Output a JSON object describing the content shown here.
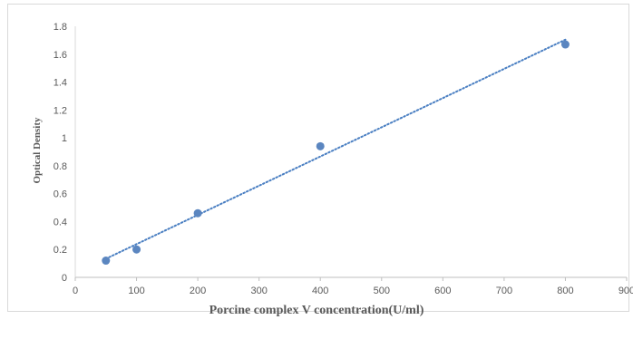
{
  "chart_data": {
    "type": "scatter",
    "title": "",
    "xlabel": "Porcine  complex V concentration(U/ml)",
    "ylabel": "Optical Density",
    "xlim": [
      0,
      900
    ],
    "ylim": [
      0,
      1.8
    ],
    "x_ticks": [
      0,
      100,
      200,
      300,
      400,
      500,
      600,
      700,
      800,
      900
    ],
    "x_tick_labels": [
      "0",
      "100",
      "200",
      "300",
      "400",
      "500",
      "600",
      "700",
      "800",
      "900"
    ],
    "y_ticks": [
      0,
      0.2,
      0.4,
      0.6,
      0.8,
      1,
      1.2,
      1.4,
      1.6,
      1.8
    ],
    "y_tick_labels": [
      "0",
      "0.2",
      "0.4",
      "0.6",
      "0.8",
      "1",
      "1.2",
      "1.4",
      "1.6",
      "1.8"
    ],
    "grid": false,
    "legend": "none",
    "series": [
      {
        "x": [
          50,
          100,
          200,
          400,
          800
        ],
        "y": [
          0.12,
          0.2,
          0.46,
          0.94,
          1.67
        ],
        "marker_color": "#5b86c0"
      }
    ],
    "trendline": {
      "type": "linear",
      "style": "dotted",
      "color": "#4a7fc2",
      "x_range": [
        50,
        800
      ]
    }
  }
}
